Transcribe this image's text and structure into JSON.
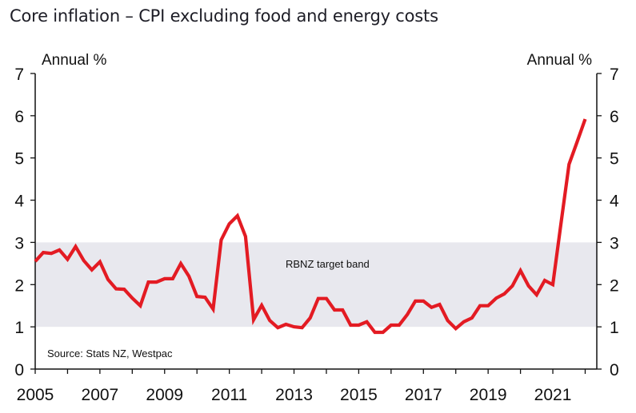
{
  "chart_data": {
    "type": "line",
    "title": "Core inflation – CPI excluding food and energy costs",
    "xlabel": "",
    "ylabel_left": "Annual %",
    "ylabel_right": "Annual %",
    "ylim": [
      0,
      7
    ],
    "yticks": [
      0,
      1,
      2,
      3,
      4,
      5,
      6,
      7
    ],
    "xlim": [
      2005,
      2022.4
    ],
    "xtick_labels": [
      "2005",
      "2007",
      "2009",
      "2011",
      "2013",
      "2015",
      "2017",
      "2019",
      "2021"
    ],
    "xtick_years": [
      2005,
      2006,
      2007,
      2008,
      2009,
      2010,
      2011,
      2012,
      2013,
      2014,
      2015,
      2016,
      2017,
      2018,
      2019,
      2020,
      2021,
      2022
    ],
    "band": {
      "label": "RBNZ target band",
      "from": 1,
      "to": 3,
      "color": "#e8e8ee"
    },
    "source": "Source: Stats NZ, Westpac",
    "line_color": "#e31b23",
    "series": [
      {
        "name": "Core inflation (CPI excl. food and energy)",
        "start_year": 2005.0,
        "step": 0.25,
        "values": [
          2.55,
          2.76,
          2.74,
          2.82,
          2.6,
          2.9,
          2.57,
          2.35,
          2.54,
          2.12,
          1.9,
          1.89,
          1.68,
          1.5,
          2.06,
          2.06,
          2.14,
          2.14,
          2.5,
          2.2,
          1.72,
          1.7,
          1.42,
          3.06,
          3.44,
          3.63,
          3.14,
          1.17,
          1.51,
          1.15,
          0.98,
          1.06,
          1.0,
          0.98,
          1.21,
          1.67,
          1.67,
          1.4,
          1.4,
          1.04,
          1.04,
          1.12,
          0.87,
          0.87,
          1.04,
          1.04,
          1.29,
          1.61,
          1.61,
          1.46,
          1.53,
          1.15,
          0.96,
          1.12,
          1.21,
          1.5,
          1.5,
          1.68,
          1.78,
          1.97,
          2.33,
          1.97,
          1.76,
          2.1,
          2.0,
          3.43,
          4.85,
          5.38,
          5.92
        ]
      }
    ]
  }
}
